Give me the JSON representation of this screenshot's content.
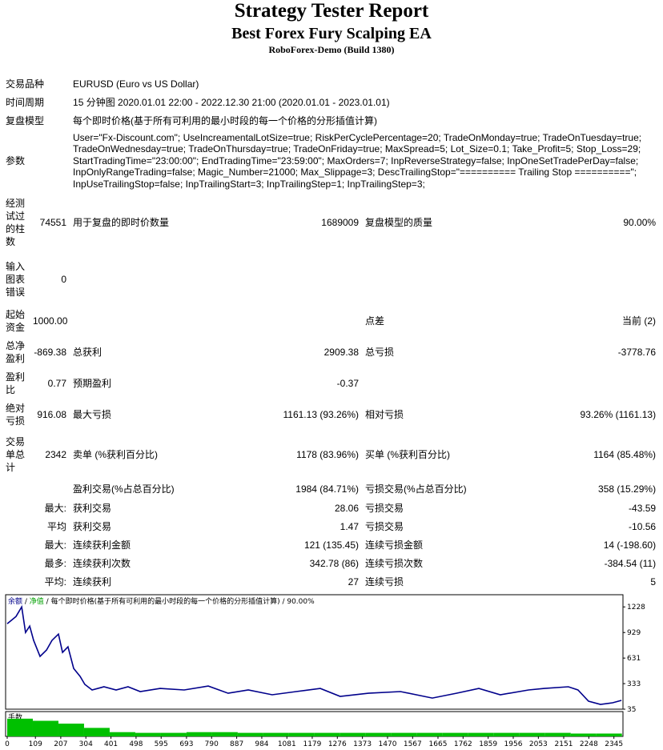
{
  "header": {
    "title": "Strategy Tester Report",
    "subtitle": "Best Forex Fury Scalping EA",
    "build": "RoboForex-Demo (Build 1380)"
  },
  "summary": [
    [
      "交易品种",
      "EURUSD (Euro vs US Dollar)"
    ],
    [
      "时间周期",
      "15 分钟图 2020.01.01 22:00 - 2022.12.30 21:00 (2020.01.01 - 2023.01.01)"
    ],
    [
      "复盘模型",
      "每个即时价格(基于所有可利用的最小时段的每一个价格的分形插值计算)"
    ],
    [
      "参数",
      "User=\"Fx-Discount.com\"; UseIncreamentalLotSize=true; RiskPerCyclePercentage=20; TradeOnMonday=true; TradeOnTuesday=true; TradeOnWednesday=true; TradeOnThursday=true; TradeOnFriday=true; MaxSpread=5; Lot_Size=0.1; Take_Profit=5; Stop_Loss=29; StartTradingTime=\"23:00:00\"; EndTradingTime=\"23:59:00\"; MaxOrders=7; InpReverseStrategy=false; InpOneSetTradePerDay=false; InpOnlyRangeTrading=false; Magic_Number=21000; Max_Slippage=3; DescTrailingStop=\"========== Trailing Stop ==========\"; InpUseTrailingStop=false; InpTrailingStart=3; InpTrailingStep=1; InpTrailingStep=3;"
    ]
  ],
  "stats": [
    [
      "经测试过的柱数",
      "74551",
      "用于复盘的即时价数量",
      "1689009",
      "复盘模型的质量",
      "90.00%"
    ],
    [
      "输入图表错误",
      "0",
      null,
      null,
      null,
      null
    ],
    [
      "起始资金",
      "1000.00",
      null,
      null,
      "点差",
      "当前 (2)"
    ],
    [
      "总净盈利",
      "-869.38",
      "总获利",
      "2909.38",
      "总亏损",
      "-3778.76"
    ],
    [
      "盈利比",
      "0.77",
      "预期盈利",
      "-0.37",
      null,
      null
    ],
    [
      "绝对亏损",
      "916.08",
      "最大亏损",
      "1161.13 (93.26%)",
      "相对亏损",
      "93.26% (1161.13)"
    ],
    [
      "交易单总计",
      "2342",
      "卖单 (%获利百分比)",
      "1178 (83.96%)",
      "买单 (%获利百分比)",
      "1164 (85.48%)"
    ],
    [
      null,
      null,
      "盈利交易(%占总百分比)",
      "1984 (84.71%)",
      "亏损交易(%占总百分比)",
      "358 (15.29%)"
    ],
    [
      null,
      "最大:",
      "获利交易",
      "28.06",
      "亏损交易",
      "-43.59"
    ],
    [
      null,
      "平均",
      "获利交易",
      "1.47",
      "亏损交易",
      "-10.56"
    ],
    [
      null,
      "最大:",
      "连续获利金额",
      "121 (135.45)",
      "连续亏损金额",
      "14 (-198.60)"
    ],
    [
      null,
      "最多:",
      "连续获利次数",
      "342.78 (86)",
      "连续亏损次数",
      "-384.54 (11)"
    ],
    [
      null,
      "平均:",
      "连续获利",
      "27",
      "连续亏损",
      "5"
    ]
  ],
  "chart_data": {
    "type": "line",
    "legend": [
      "净值",
      "每个即时价格(基于所有可利用的最小时段的每一个价格的分形插值计算)",
      "90.00%"
    ],
    "x": [
      0,
      34,
      56,
      71,
      87,
      102,
      127,
      152,
      173,
      198,
      214,
      235,
      257,
      282,
      300,
      328,
      374,
      421,
      467,
      514,
      591,
      684,
      777,
      854,
      932,
      1024,
      1117,
      1210,
      1287,
      1396,
      1520,
      1643,
      1736,
      1823,
      1906,
      2015,
      2076,
      2169,
      2206,
      2247,
      2293,
      2340,
      2374
    ],
    "series": [
      {
        "name": "余额",
        "color": "#00008b",
        "values": [
          1032,
          1116,
          1228,
          929,
          1004,
          837,
          650,
          725,
          837,
          911,
          697,
          762,
          510,
          417,
          324,
          259,
          296,
          259,
          296,
          240,
          277,
          259,
          305,
          221,
          259,
          203,
          240,
          277,
          184,
          221,
          240,
          165,
          221,
          277,
          203,
          259,
          277,
          296,
          259,
          128,
          91,
          110,
          138
        ]
      }
    ],
    "xlim": [
      0,
      2380
    ],
    "ylim": [
      35,
      1370
    ],
    "yticks": [
      35,
      333,
      631,
      929,
      1228
    ],
    "xticks": [
      0,
      109,
      207,
      304,
      401,
      498,
      595,
      693,
      790,
      887,
      984,
      1081,
      1179,
      1276,
      1373,
      1470,
      1567,
      1665,
      1762,
      1859,
      1956,
      2053,
      2151,
      2248,
      2345
    ],
    "volume": {
      "type": "histogram",
      "label": "手数",
      "color": "#00c000",
      "bins": [
        0,
        99,
        198,
        297,
        396,
        495,
        594,
        693,
        792,
        891,
        990,
        1089,
        1188,
        1287,
        1386,
        1485,
        1584,
        1683,
        1782,
        1881,
        1980,
        2079,
        2178,
        2277,
        2376
      ],
      "values": [
        0.25,
        0.22,
        0.18,
        0.12,
        0.06,
        0.05,
        0.05,
        0.06,
        0.06,
        0.05,
        0.05,
        0.05,
        0.05,
        0.05,
        0.05,
        0.05,
        0.05,
        0.05,
        0.05,
        0.05,
        0.05,
        0.05,
        0.04,
        0.04
      ],
      "ylim": [
        0,
        0.35
      ]
    }
  }
}
